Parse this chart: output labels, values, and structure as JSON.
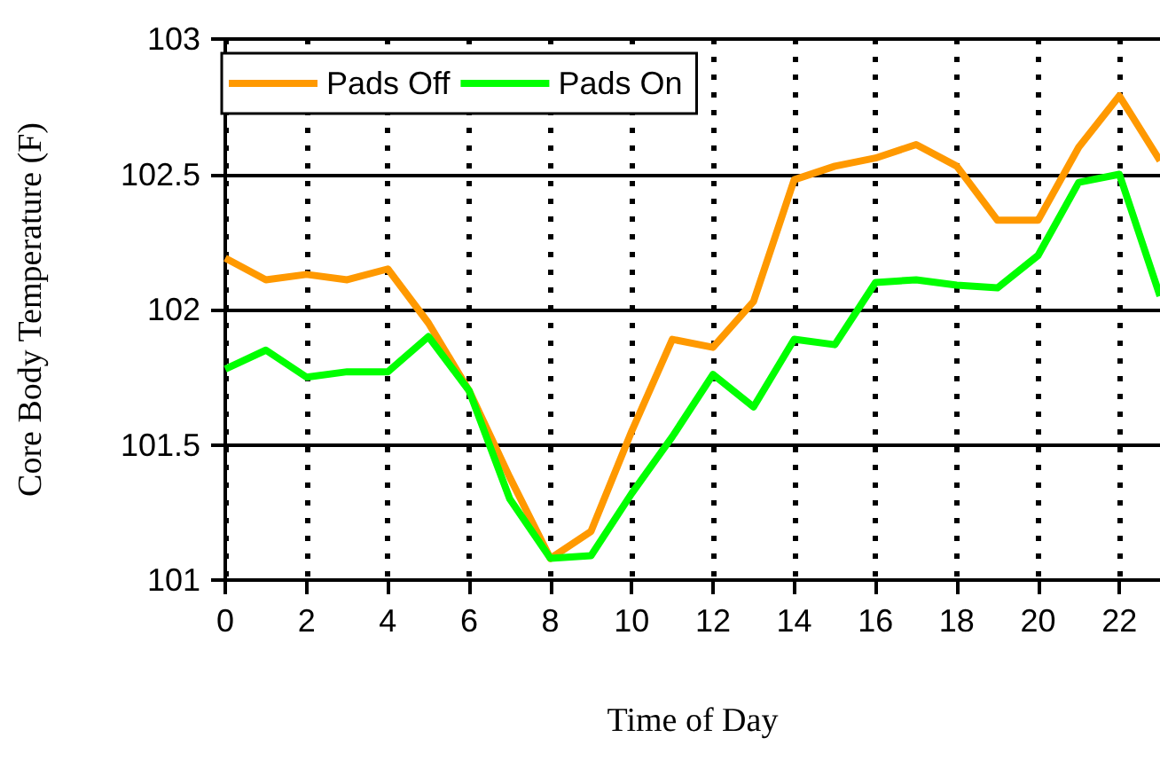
{
  "chart_data": {
    "type": "line",
    "xlabel": "Time of Day",
    "ylabel": "Core Body Temperature (F)",
    "x": [
      0,
      1,
      2,
      3,
      4,
      5,
      6,
      7,
      8,
      9,
      10,
      11,
      12,
      13,
      14,
      15,
      16,
      17,
      18,
      19,
      20,
      21,
      22,
      23
    ],
    "series": [
      {
        "name": "Pads Off",
        "color": "#ff9900",
        "values": [
          102.19,
          102.11,
          102.13,
          102.11,
          102.15,
          101.95,
          101.7,
          101.38,
          101.08,
          101.18,
          101.55,
          101.89,
          101.86,
          102.03,
          102.48,
          102.53,
          102.56,
          102.61,
          102.53,
          102.33,
          102.33,
          102.6,
          102.79,
          102.55
        ]
      },
      {
        "name": "Pads On",
        "color": "#00ff00",
        "values": [
          101.78,
          101.85,
          101.75,
          101.77,
          101.77,
          101.9,
          101.7,
          101.3,
          101.08,
          101.09,
          101.32,
          101.53,
          101.76,
          101.64,
          101.89,
          101.87,
          102.1,
          102.11,
          102.09,
          102.08,
          102.2,
          102.47,
          102.5,
          102.05
        ]
      }
    ],
    "xlim": [
      0,
      23
    ],
    "xticks": [
      0,
      2,
      4,
      6,
      8,
      10,
      12,
      14,
      16,
      18,
      20,
      22
    ],
    "ylim": [
      101,
      103
    ],
    "yticks": [
      101,
      101.5,
      102,
      102.5,
      103
    ],
    "grid": true,
    "legend": "top left",
    "marker": "none",
    "line_style": "solid"
  }
}
